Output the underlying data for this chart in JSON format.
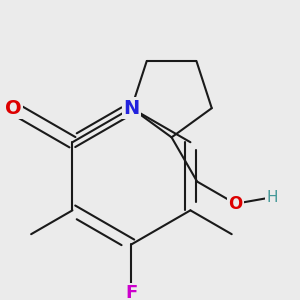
{
  "background_color": "#ebebeb",
  "bond_color": "#1a1a1a",
  "bond_width": 1.5,
  "dbo": 0.048,
  "atom_labels": {
    "O_carbonyl": {
      "text": "O",
      "color": "#dd0000",
      "fontsize": 14,
      "fontweight": "bold"
    },
    "N": {
      "text": "N",
      "color": "#2222dd",
      "fontsize": 14,
      "fontweight": "bold"
    },
    "F": {
      "text": "F",
      "color": "#cc00cc",
      "fontsize": 13,
      "fontweight": "bold"
    },
    "O_oh": {
      "text": "O",
      "color": "#dd0000",
      "fontsize": 12,
      "fontweight": "bold"
    },
    "H": {
      "text": "H",
      "color": "#449999",
      "fontsize": 11,
      "fontweight": "normal"
    }
  },
  "figsize": [
    3.0,
    3.0
  ],
  "dpi": 100
}
